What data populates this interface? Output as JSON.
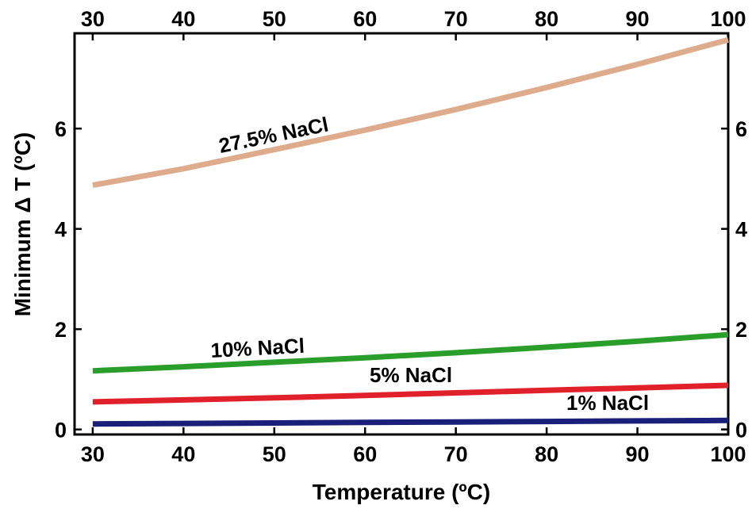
{
  "chart_data": {
    "type": "line",
    "title": "",
    "xlabel": "Temperature (ºC)",
    "ylabel": "Minimum Δ T (ºC)",
    "xlim": [
      28,
      100
    ],
    "ylim": [
      -0.1,
      7.9
    ],
    "xticks": [
      30,
      40,
      50,
      60,
      70,
      80,
      90,
      100
    ],
    "yticks": [
      0,
      2,
      4,
      6
    ],
    "grid": false,
    "legend": "none",
    "series": [
      {
        "name": "27.5% NaCl",
        "color": "#dfab8d",
        "x": [
          30,
          40,
          50,
          60,
          70,
          80,
          90,
          100
        ],
        "y": [
          4.87,
          5.2,
          5.58,
          5.97,
          6.38,
          6.82,
          7.28,
          7.77
        ]
      },
      {
        "name": "10% NaCl",
        "color": "#2a9e2a",
        "x": [
          30,
          40,
          50,
          60,
          70,
          80,
          90,
          100
        ],
        "y": [
          1.17,
          1.25,
          1.34,
          1.43,
          1.53,
          1.64,
          1.76,
          1.89
        ]
      },
      {
        "name": "5% NaCl",
        "color": "#e0202a",
        "x": [
          30,
          40,
          50,
          60,
          70,
          80,
          90,
          100
        ],
        "y": [
          0.55,
          0.59,
          0.63,
          0.68,
          0.73,
          0.78,
          0.83,
          0.88
        ]
      },
      {
        "name": "1% NaCl",
        "color": "#1a1f7a",
        "x": [
          30,
          40,
          50,
          60,
          70,
          80,
          90,
          100
        ],
        "y": [
          0.11,
          0.12,
          0.13,
          0.14,
          0.15,
          0.16,
          0.17,
          0.18
        ]
      }
    ]
  }
}
